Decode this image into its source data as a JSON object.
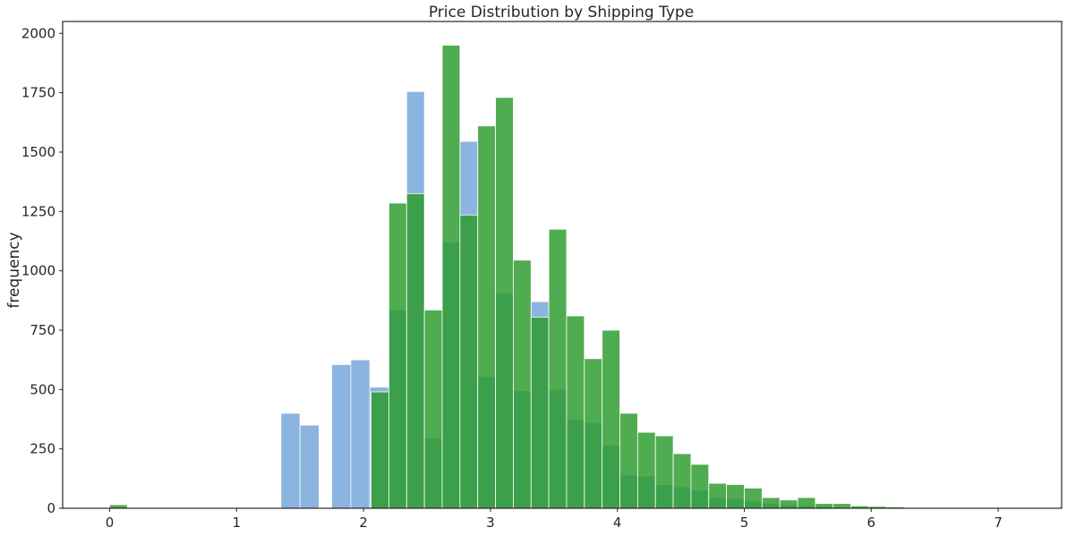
{
  "chart_data": {
    "type": "bar",
    "title": "Price Distribution by Shipping Type",
    "xlabel": "",
    "ylabel": "frequency",
    "xlim": [
      -0.37,
      7.5
    ],
    "ylim": [
      0,
      2050
    ],
    "xticks": [
      "0",
      "1",
      "2",
      "3",
      "4",
      "5",
      "6",
      "7"
    ],
    "yticks": [
      "0",
      "250",
      "500",
      "750",
      "1000",
      "1250",
      "1500",
      "1750",
      "2000"
    ],
    "grid": false,
    "legend": "none",
    "colors": {
      "series_0": "#8bb4e0",
      "series_1": "#2a9a2a",
      "overlap": "#2d8c48"
    },
    "series": [
      {
        "color": "#8bb4e0",
        "alpha": 1.0,
        "bins": [
          {
            "x0": 1.35,
            "x1": 1.5,
            "value": 400
          },
          {
            "x0": 1.5,
            "x1": 1.65,
            "value": 350
          },
          {
            "x0": 1.75,
            "x1": 1.9,
            "value": 605
          },
          {
            "x0": 1.9,
            "x1": 2.05,
            "value": 625
          },
          {
            "x0": 2.05,
            "x1": 2.2,
            "value": 510
          },
          {
            "x0": 2.2,
            "x1": 2.34,
            "value": 835
          },
          {
            "x0": 2.34,
            "x1": 2.48,
            "value": 1755
          },
          {
            "x0": 2.48,
            "x1": 2.62,
            "value": 295
          },
          {
            "x0": 2.62,
            "x1": 2.76,
            "value": 1120
          },
          {
            "x0": 2.76,
            "x1": 2.9,
            "value": 1545
          },
          {
            "x0": 2.9,
            "x1": 3.04,
            "value": 555
          },
          {
            "x0": 3.04,
            "x1": 3.18,
            "value": 905
          },
          {
            "x0": 3.18,
            "x1": 3.32,
            "value": 495
          },
          {
            "x0": 3.32,
            "x1": 3.46,
            "value": 870
          },
          {
            "x0": 3.46,
            "x1": 3.6,
            "value": 500
          },
          {
            "x0": 3.6,
            "x1": 3.74,
            "value": 375
          },
          {
            "x0": 3.74,
            "x1": 3.88,
            "value": 360
          },
          {
            "x0": 3.88,
            "x1": 4.02,
            "value": 265
          },
          {
            "x0": 4.02,
            "x1": 4.16,
            "value": 140
          },
          {
            "x0": 4.16,
            "x1": 4.3,
            "value": 135
          },
          {
            "x0": 4.3,
            "x1": 4.44,
            "value": 100
          },
          {
            "x0": 4.44,
            "x1": 4.58,
            "value": 90
          },
          {
            "x0": 4.58,
            "x1": 4.72,
            "value": 75
          },
          {
            "x0": 4.72,
            "x1": 4.86,
            "value": 45
          },
          {
            "x0": 4.86,
            "x1": 5.0,
            "value": 40
          },
          {
            "x0": 5.0,
            "x1": 5.14,
            "value": 30
          },
          {
            "x0": 5.14,
            "x1": 5.28,
            "value": 20
          },
          {
            "x0": 5.28,
            "x1": 5.42,
            "value": 15
          },
          {
            "x0": 5.42,
            "x1": 5.56,
            "value": 10
          },
          {
            "x0": 5.56,
            "x1": 5.7,
            "value": 8
          }
        ]
      },
      {
        "color": "#2a9a2a",
        "alpha": 0.82,
        "bins": [
          {
            "x0": 0.0,
            "x1": 0.14,
            "value": 15
          },
          {
            "x0": 2.06,
            "x1": 2.2,
            "value": 490
          },
          {
            "x0": 2.2,
            "x1": 2.34,
            "value": 1285
          },
          {
            "x0": 2.34,
            "x1": 2.48,
            "value": 1325
          },
          {
            "x0": 2.48,
            "x1": 2.62,
            "value": 835
          },
          {
            "x0": 2.62,
            "x1": 2.76,
            "value": 1950
          },
          {
            "x0": 2.76,
            "x1": 2.9,
            "value": 1235
          },
          {
            "x0": 2.9,
            "x1": 3.04,
            "value": 1610
          },
          {
            "x0": 3.04,
            "x1": 3.18,
            "value": 1730
          },
          {
            "x0": 3.18,
            "x1": 3.32,
            "value": 1045
          },
          {
            "x0": 3.32,
            "x1": 3.46,
            "value": 805
          },
          {
            "x0": 3.46,
            "x1": 3.6,
            "value": 1175
          },
          {
            "x0": 3.6,
            "x1": 3.74,
            "value": 810
          },
          {
            "x0": 3.74,
            "x1": 3.88,
            "value": 630
          },
          {
            "x0": 3.88,
            "x1": 4.02,
            "value": 750
          },
          {
            "x0": 4.02,
            "x1": 4.16,
            "value": 400
          },
          {
            "x0": 4.16,
            "x1": 4.3,
            "value": 320
          },
          {
            "x0": 4.3,
            "x1": 4.44,
            "value": 305
          },
          {
            "x0": 4.44,
            "x1": 4.58,
            "value": 230
          },
          {
            "x0": 4.58,
            "x1": 4.72,
            "value": 185
          },
          {
            "x0": 4.72,
            "x1": 4.86,
            "value": 105
          },
          {
            "x0": 4.86,
            "x1": 5.0,
            "value": 100
          },
          {
            "x0": 5.0,
            "x1": 5.14,
            "value": 85
          },
          {
            "x0": 5.14,
            "x1": 5.28,
            "value": 45
          },
          {
            "x0": 5.28,
            "x1": 5.42,
            "value": 35
          },
          {
            "x0": 5.42,
            "x1": 5.56,
            "value": 45
          },
          {
            "x0": 5.56,
            "x1": 5.7,
            "value": 20
          },
          {
            "x0": 5.7,
            "x1": 5.84,
            "value": 20
          },
          {
            "x0": 5.84,
            "x1": 5.98,
            "value": 10
          },
          {
            "x0": 5.98,
            "x1": 6.12,
            "value": 8
          },
          {
            "x0": 6.12,
            "x1": 6.26,
            "value": 6
          },
          {
            "x0": 6.26,
            "x1": 6.4,
            "value": 3
          },
          {
            "x0": 6.4,
            "x1": 6.54,
            "value": 2
          }
        ]
      }
    ]
  }
}
